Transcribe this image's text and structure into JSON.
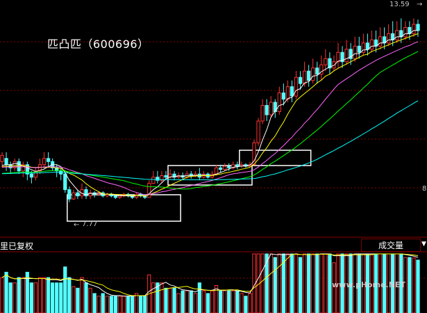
{
  "title": "匹凸匹（600696）",
  "high_label": "13.59",
  "low_label": "7.77",
  "axis_right_label": "8",
  "mode_label": "里已复权",
  "volume_tab_label": "成交量",
  "watermark": "www.pHome.NET",
  "colors": {
    "up": "#ff3232",
    "down": "#54ffff",
    "grid": "#8b0000",
    "ma5": "#ffffff",
    "ma10": "#ffff00",
    "ma20": "#ff66ff",
    "ma30": "#00ff00",
    "ma60": "#00ffff",
    "box": "#ffffff"
  },
  "chart_data": {
    "type": "candlestick",
    "series_count": 100,
    "price_range": [
      7.0,
      14.0
    ],
    "candles": [
      [
        9.0,
        9.2,
        8.8,
        9.3
      ],
      [
        9.1,
        8.9,
        8.7,
        9.3
      ],
      [
        8.9,
        8.8,
        8.6,
        9.0
      ],
      [
        8.8,
        9.0,
        8.7,
        9.1
      ],
      [
        9.0,
        8.7,
        8.6,
        9.1
      ],
      [
        8.7,
        8.9,
        8.5,
        9.0
      ],
      [
        8.9,
        8.6,
        8.4,
        9.0
      ],
      [
        8.6,
        8.5,
        8.3,
        8.7
      ],
      [
        8.5,
        8.7,
        8.4,
        8.8
      ],
      [
        8.7,
        8.9,
        8.6,
        9.1
      ],
      [
        8.9,
        9.1,
        8.8,
        9.3
      ],
      [
        9.1,
        9.0,
        8.8,
        9.3
      ],
      [
        9.0,
        8.8,
        8.7,
        9.1
      ],
      [
        8.8,
        8.7,
        8.5,
        8.9
      ],
      [
        8.7,
        8.6,
        8.4,
        8.8
      ],
      [
        8.6,
        8.1,
        8.0,
        8.7
      ],
      [
        8.1,
        7.8,
        7.7,
        8.2
      ],
      [
        7.8,
        8.0,
        7.77,
        8.1
      ],
      [
        8.0,
        7.9,
        7.8,
        8.1
      ],
      [
        7.9,
        8.1,
        7.8,
        8.3
      ],
      [
        8.1,
        7.9,
        7.8,
        8.2
      ],
      [
        7.9,
        8.0,
        7.8,
        8.1
      ],
      [
        8.0,
        7.95,
        7.85,
        8.05
      ],
      [
        7.95,
        8.0,
        7.9,
        8.05
      ],
      [
        8.0,
        7.9,
        7.85,
        8.05
      ],
      [
        7.9,
        7.95,
        7.85,
        8.0
      ],
      [
        7.95,
        7.9,
        7.85,
        8.0
      ],
      [
        7.9,
        7.85,
        7.8,
        7.95
      ],
      [
        7.85,
        7.9,
        7.8,
        7.95
      ],
      [
        7.9,
        7.95,
        7.85,
        8.0
      ],
      [
        7.95,
        7.9,
        7.85,
        8.0
      ],
      [
        7.9,
        7.85,
        7.8,
        7.95
      ],
      [
        7.85,
        7.95,
        7.8,
        8.0
      ],
      [
        7.95,
        7.9,
        7.85,
        8.0
      ],
      [
        7.9,
        7.85,
        7.8,
        7.95
      ],
      [
        7.85,
        8.3,
        7.85,
        8.4
      ],
      [
        8.3,
        8.5,
        8.3,
        8.7
      ],
      [
        8.5,
        8.4,
        8.3,
        8.7
      ],
      [
        8.4,
        8.55,
        8.3,
        8.7
      ],
      [
        8.55,
        8.5,
        8.4,
        8.7
      ],
      [
        8.5,
        8.6,
        8.45,
        8.75
      ],
      [
        8.6,
        8.5,
        8.4,
        8.7
      ],
      [
        8.5,
        8.55,
        8.45,
        8.65
      ],
      [
        8.55,
        8.5,
        8.4,
        8.65
      ],
      [
        8.5,
        8.6,
        8.45,
        8.7
      ],
      [
        8.6,
        8.55,
        8.45,
        8.7
      ],
      [
        8.55,
        8.6,
        8.5,
        8.7
      ],
      [
        8.6,
        8.5,
        8.4,
        8.8
      ],
      [
        8.5,
        8.6,
        8.45,
        8.7
      ],
      [
        8.6,
        8.5,
        8.45,
        8.65
      ],
      [
        8.5,
        8.6,
        8.45,
        8.7
      ],
      [
        8.6,
        8.8,
        8.55,
        8.9
      ],
      [
        8.8,
        8.75,
        8.65,
        8.9
      ],
      [
        8.75,
        8.85,
        8.7,
        8.95
      ],
      [
        8.85,
        8.8,
        8.7,
        8.95
      ],
      [
        8.8,
        8.9,
        8.75,
        9.0
      ],
      [
        8.9,
        8.85,
        8.75,
        9.0
      ],
      [
        8.85,
        8.9,
        8.8,
        9.0
      ],
      [
        8.9,
        8.85,
        8.8,
        8.95
      ],
      [
        8.85,
        8.9,
        8.8,
        9.0
      ],
      [
        8.9,
        9.6,
        8.9,
        9.7
      ],
      [
        9.6,
        10.3,
        9.5,
        10.4
      ],
      [
        10.3,
        10.8,
        10.2,
        11.0
      ],
      [
        10.8,
        10.5,
        10.3,
        11.0
      ],
      [
        10.5,
        10.9,
        10.4,
        11.1
      ],
      [
        10.9,
        10.6,
        10.4,
        11.0
      ],
      [
        10.6,
        11.2,
        10.5,
        11.4
      ],
      [
        11.2,
        11.0,
        10.8,
        11.5
      ],
      [
        11.0,
        11.4,
        10.9,
        11.6
      ],
      [
        11.4,
        11.1,
        10.9,
        11.6
      ],
      [
        11.1,
        11.7,
        11.0,
        11.9
      ],
      [
        11.7,
        11.5,
        11.3,
        11.9
      ],
      [
        11.5,
        11.9,
        11.4,
        12.2
      ],
      [
        11.9,
        11.6,
        11.4,
        12.1
      ],
      [
        11.6,
        12.0,
        11.5,
        12.3
      ],
      [
        12.0,
        11.8,
        11.5,
        12.2
      ],
      [
        11.8,
        12.1,
        11.6,
        12.4
      ],
      [
        12.1,
        12.3,
        11.9,
        12.6
      ],
      [
        12.3,
        12.0,
        11.8,
        12.5
      ],
      [
        12.0,
        12.2,
        11.9,
        12.4
      ],
      [
        12.2,
        12.5,
        12.0,
        12.8
      ],
      [
        12.5,
        12.2,
        12.0,
        12.7
      ],
      [
        12.2,
        12.6,
        12.1,
        12.9
      ],
      [
        12.6,
        12.3,
        12.1,
        12.8
      ],
      [
        12.3,
        12.7,
        12.2,
        13.0
      ],
      [
        12.7,
        12.5,
        12.3,
        13.0
      ],
      [
        12.5,
        12.8,
        12.4,
        13.1
      ],
      [
        12.8,
        12.6,
        12.4,
        13.1
      ],
      [
        12.6,
        12.9,
        12.5,
        13.2
      ],
      [
        12.9,
        12.7,
        12.5,
        13.2
      ],
      [
        12.7,
        13.0,
        12.6,
        13.3
      ],
      [
        13.0,
        12.8,
        12.6,
        13.3
      ],
      [
        12.8,
        13.1,
        12.7,
        13.4
      ],
      [
        13.1,
        12.9,
        12.7,
        13.5
      ],
      [
        12.9,
        13.2,
        12.8,
        13.5
      ],
      [
        13.2,
        13.0,
        12.8,
        13.59
      ],
      [
        13.0,
        13.3,
        12.9,
        13.5
      ],
      [
        13.3,
        13.1,
        12.9,
        13.5
      ],
      [
        13.1,
        13.4,
        13.0,
        13.59
      ],
      [
        13.4,
        13.2,
        13.0,
        13.55
      ]
    ],
    "ma_series": [
      {
        "name": "MA5",
        "color": "#ffffff",
        "period": 5
      },
      {
        "name": "MA10",
        "color": "#ffff00",
        "period": 10
      },
      {
        "name": "MA20",
        "color": "#ff66ff",
        "period": 20
      },
      {
        "name": "MA30",
        "color": "#00ff00",
        "period": 30
      },
      {
        "name": "MA60",
        "color": "#00ffff",
        "period": 60
      }
    ],
    "highlight_ranges": [
      [
        16,
        42
      ],
      [
        40,
        59
      ],
      [
        57,
        73
      ]
    ]
  }
}
